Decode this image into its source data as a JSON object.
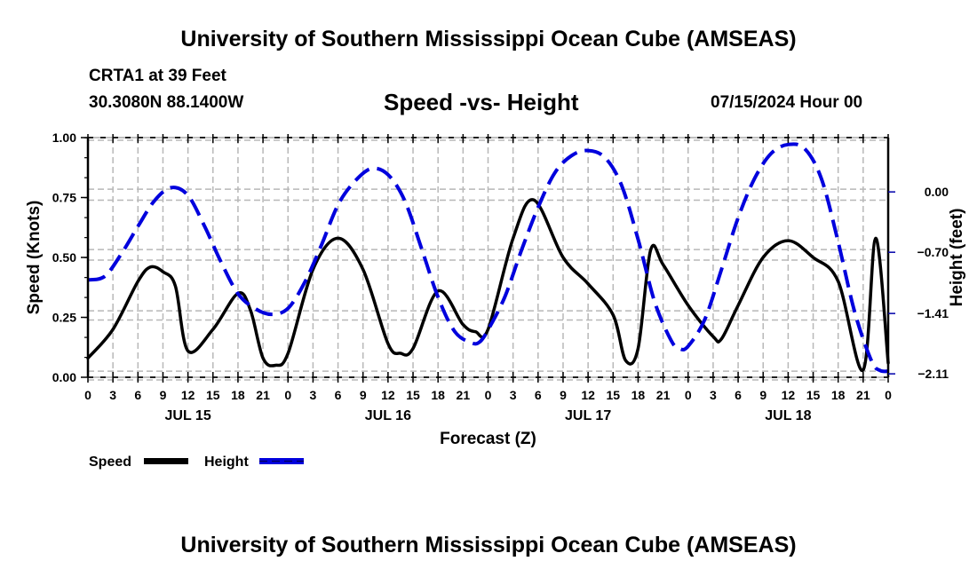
{
  "header": {
    "title": "University of Southern Mississippi Ocean Cube (AMSEAS)",
    "station": "CRTA1 at 39 Feet",
    "coordinates": "30.3080N  88.1400W",
    "subtitle": "Speed -vs- Height",
    "datetime": "07/15/2024 Hour 00"
  },
  "footer": {
    "title": "University of Southern Mississippi Ocean Cube (AMSEAS)"
  },
  "chart_data": {
    "type": "line",
    "title": "Speed -vs- Height",
    "xlabel": "Forecast (Z)",
    "ylabel": "Speed (Knots)",
    "y2label": "Height (feet)",
    "xlim": [
      0,
      96
    ],
    "ylim": [
      0,
      1
    ],
    "y2lim": [
      -2.15,
      0.63
    ],
    "grid": true,
    "x_ticks": [
      0,
      3,
      6,
      9,
      12,
      15,
      18,
      21,
      24,
      27,
      30,
      33,
      36,
      39,
      42,
      45,
      48,
      51,
      54,
      57,
      60,
      63,
      66,
      69,
      72,
      75,
      78,
      81,
      84,
      87,
      90,
      93,
      96
    ],
    "x_tick_labels": [
      "0",
      "3",
      "6",
      "9",
      "12",
      "15",
      "18",
      "21",
      "0",
      "3",
      "6",
      "9",
      "12",
      "15",
      "18",
      "21",
      "0",
      "3",
      "6",
      "9",
      "12",
      "15",
      "18",
      "21",
      "0",
      "3",
      "6",
      "9",
      "12",
      "15",
      "18",
      "21",
      "0"
    ],
    "day_labels": [
      {
        "label": "JUL 15",
        "center_hour": 12
      },
      {
        "label": "JUL 16",
        "center_hour": 36
      },
      {
        "label": "JUL 17",
        "center_hour": 60
      },
      {
        "label": "JUL 18",
        "center_hour": 84
      }
    ],
    "y_ticks": [
      0.0,
      0.25,
      0.5,
      0.75,
      1.0
    ],
    "y_tick_labels": [
      "0.00",
      "0.25",
      "0.50",
      "0.75",
      "1.00"
    ],
    "y2_ticks": [
      0.0,
      -0.7,
      -1.41,
      -2.11
    ],
    "y2_tick_labels": [
      "0.00",
      "−0.70",
      "−1.41",
      "−2.11"
    ],
    "legend_position": "bottom-left",
    "series": [
      {
        "name": "Speed",
        "axis": "left",
        "color": "#000000",
        "style": "solid",
        "x": [
          0,
          3,
          6,
          7.5,
          9,
          10.5,
          12,
          15,
          18,
          19.5,
          21,
          22.5,
          24,
          27,
          30,
          33,
          36,
          37.5,
          39,
          42,
          45,
          46.5,
          48,
          51,
          53.5,
          57,
          60,
          63,
          64.5,
          66,
          67.5,
          69,
          72,
          75,
          76,
          78,
          81,
          84,
          87,
          90,
          93,
          94.5,
          96
        ],
        "values": [
          0.08,
          0.2,
          0.4,
          0.46,
          0.44,
          0.38,
          0.11,
          0.2,
          0.35,
          0.28,
          0.08,
          0.05,
          0.1,
          0.45,
          0.58,
          0.45,
          0.14,
          0.1,
          0.12,
          0.36,
          0.22,
          0.19,
          0.2,
          0.58,
          0.74,
          0.5,
          0.39,
          0.26,
          0.07,
          0.12,
          0.53,
          0.47,
          0.3,
          0.17,
          0.16,
          0.3,
          0.5,
          0.57,
          0.5,
          0.4,
          0.03,
          0.58,
          0.06
        ]
      },
      {
        "name": "Height",
        "axis": "right",
        "color": "#0000dd",
        "style": "dashed",
        "x": [
          0,
          2,
          4,
          6,
          8,
          10,
          12,
          14,
          16,
          18,
          20,
          22,
          24,
          26,
          28,
          30,
          32,
          34,
          36,
          38,
          40,
          42,
          44,
          46,
          47,
          48,
          50,
          52,
          54,
          56,
          58,
          60,
          62,
          64,
          66,
          68,
          70,
          71,
          72,
          74,
          76,
          78,
          80,
          82,
          84,
          86,
          88,
          90,
          92,
          94,
          95,
          96
        ],
        "values": [
          -1.02,
          -0.98,
          -0.72,
          -0.4,
          -0.1,
          0.05,
          -0.04,
          -0.4,
          -0.82,
          -1.18,
          -1.35,
          -1.42,
          -1.35,
          -1.05,
          -0.62,
          -0.15,
          0.12,
          0.27,
          0.2,
          -0.1,
          -0.65,
          -1.22,
          -1.62,
          -1.75,
          -1.74,
          -1.6,
          -1.22,
          -0.68,
          -0.18,
          0.22,
          0.42,
          0.48,
          0.4,
          0.08,
          -0.55,
          -1.28,
          -1.73,
          -1.82,
          -1.79,
          -1.48,
          -0.9,
          -0.3,
          0.16,
          0.45,
          0.55,
          0.5,
          0.15,
          -0.58,
          -1.4,
          -1.96,
          -2.07,
          -2.08
        ]
      }
    ]
  }
}
